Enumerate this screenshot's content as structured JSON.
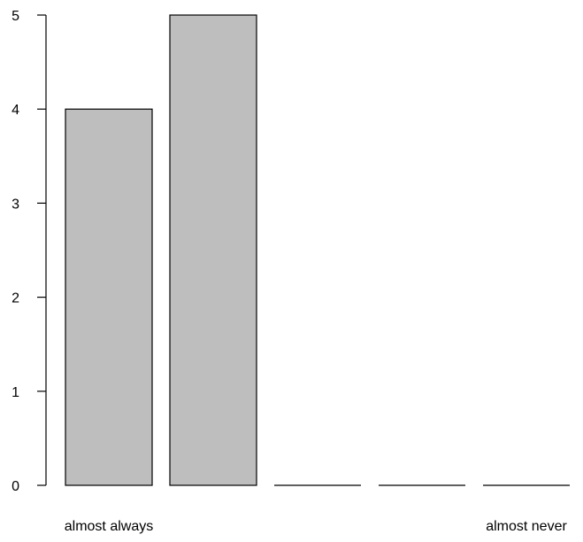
{
  "chart_data": {
    "type": "bar",
    "categories": [
      "almost always",
      "",
      "",
      "",
      "almost never"
    ],
    "values": [
      4,
      5,
      0,
      0,
      0
    ],
    "title": "",
    "xlabel": "",
    "ylabel": "",
    "ylim": [
      0,
      5
    ],
    "yticks": [
      "0",
      "1",
      "2",
      "3",
      "4",
      "5"
    ],
    "grid": false,
    "bar_color": "#bebebe",
    "stroke_color": "#000000"
  }
}
